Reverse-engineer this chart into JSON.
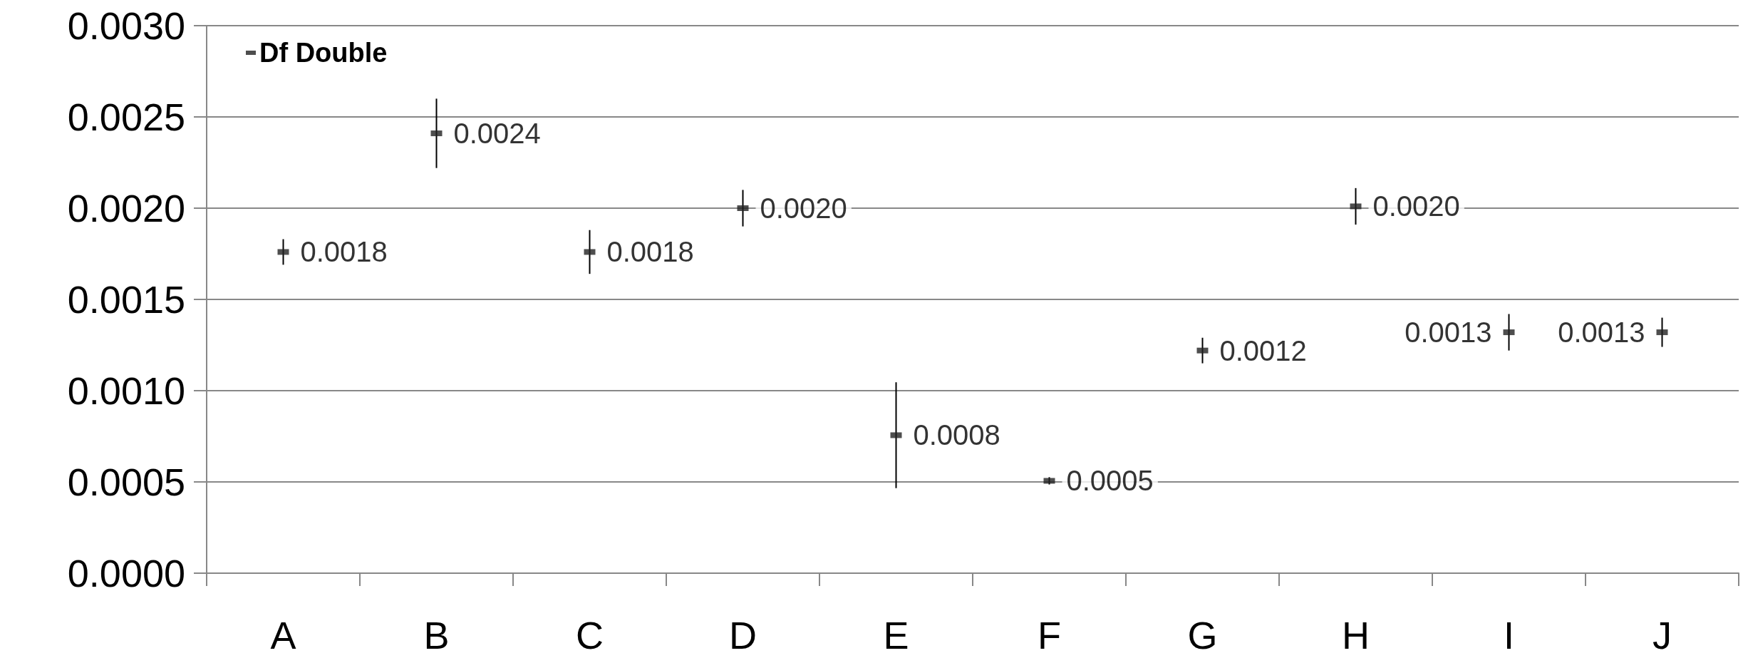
{
  "chart_data": {
    "type": "scatter",
    "categories": [
      "A",
      "B",
      "C",
      "D",
      "E",
      "F",
      "G",
      "H",
      "I",
      "J"
    ],
    "series": [
      {
        "name": "Df Double",
        "color": "#222222",
        "values": [
          0.00176,
          0.00241,
          0.00176,
          0.002,
          0.000756,
          0.000506,
          0.00122,
          0.00201,
          0.00132,
          0.00132
        ],
        "errors": [
          7e-05,
          0.00019,
          0.00012,
          0.0001,
          0.00029,
          2e-05,
          7e-05,
          0.0001,
          0.0001,
          8e-05
        ],
        "value_labels": [
          "0.0018",
          "0.0024",
          "0.0018",
          "0.0020",
          "0.0008",
          "0.0005",
          "0.0012",
          "0.0020",
          "0.0013",
          "0.0013"
        ]
      }
    ],
    "ylim": [
      0,
      0.003
    ],
    "yticks": [
      {
        "value": 0,
        "label": "0.0000"
      },
      {
        "value": 0.0005,
        "label": "0.0005"
      },
      {
        "value": 0.001,
        "label": "0.0010"
      },
      {
        "value": 0.0015,
        "label": "0.0015"
      },
      {
        "value": 0.002,
        "label": "0.0020"
      },
      {
        "value": 0.0025,
        "label": "0.0025"
      },
      {
        "value": 0.003,
        "label": "0.0030"
      }
    ],
    "grid": "y",
    "legend": "top left",
    "marker": "square"
  }
}
